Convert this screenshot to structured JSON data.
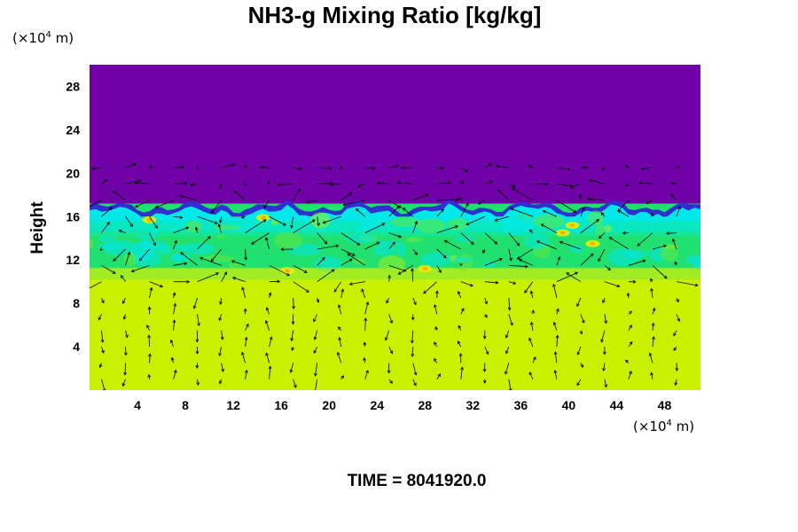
{
  "chart_data": {
    "type": "heatmap",
    "title": "NH3-g Mixing Ratio [kg/kg]",
    "ylabel": "Height",
    "xlabel": "",
    "y_unit": {
      "base": "(×10",
      "exp": "4",
      "tail": " m)"
    },
    "x_unit": {
      "base": "(×10",
      "exp": "4",
      "tail": " m)"
    },
    "xlim": [
      0,
      51
    ],
    "ylim": [
      0,
      30
    ],
    "x_ticks": [
      "4",
      "8",
      "12",
      "16",
      "20",
      "24",
      "28",
      "32",
      "36",
      "40",
      "44",
      "48"
    ],
    "y_ticks": [
      "4",
      "8",
      "12",
      "16",
      "20",
      "24",
      "28"
    ],
    "colors": {
      "top": "#7000a8",
      "boundary": "#3030d0",
      "cyan": "#00e8e8",
      "green": "#20e070",
      "lime": "#c8f000",
      "yellow": "#f0f000",
      "orange": "#f8b000"
    },
    "layers": [
      {
        "name": "upper",
        "y_from": 17,
        "y_to": 30,
        "color": "#7000a8"
      },
      {
        "name": "mixing",
        "y_from": 11,
        "y_to": 17,
        "color": "#20e070"
      },
      {
        "name": "lower",
        "y_from": 0,
        "y_to": 10,
        "color": "#c8f000"
      }
    ],
    "overlay": "wind vectors"
  },
  "time_label": "TIME = 8041920.0"
}
